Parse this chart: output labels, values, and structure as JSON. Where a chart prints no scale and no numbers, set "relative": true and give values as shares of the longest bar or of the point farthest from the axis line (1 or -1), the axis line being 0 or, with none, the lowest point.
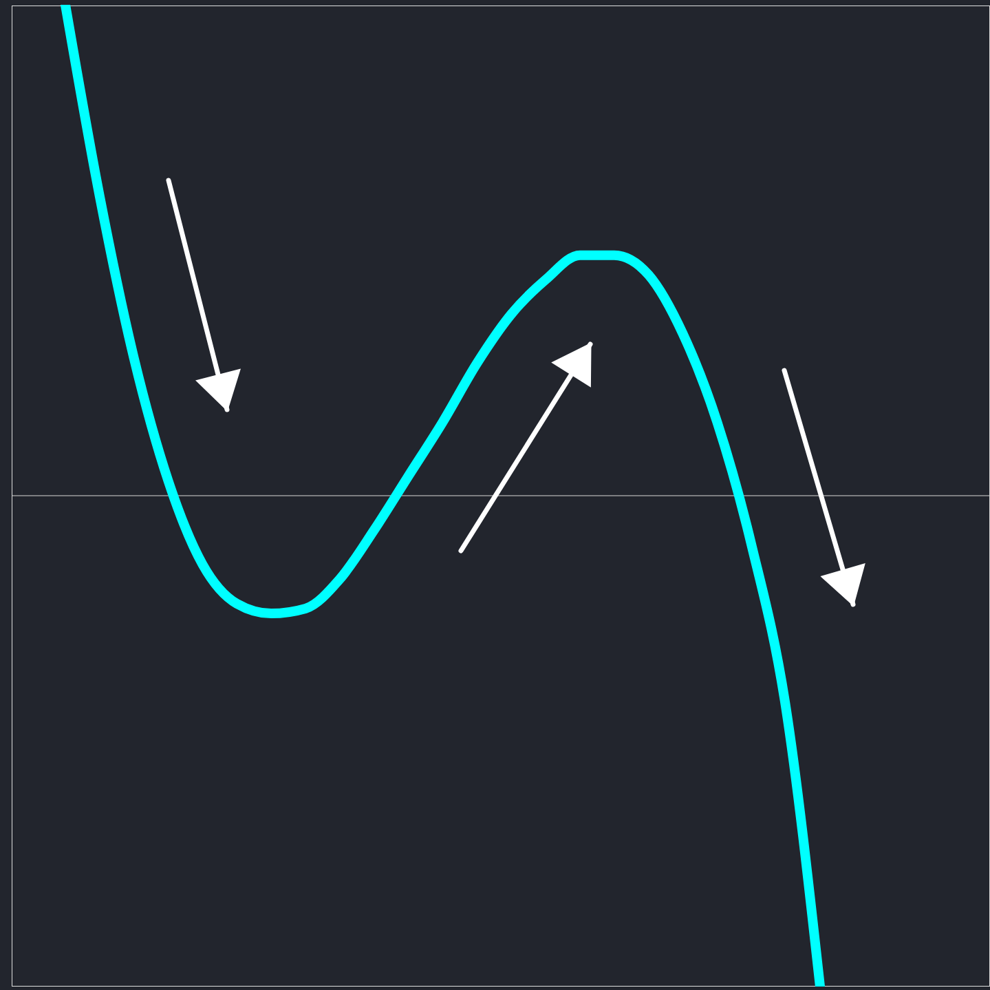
{
  "chart_data": {
    "type": "line",
    "relative": true,
    "marker": "none",
    "line_style": "solid",
    "categories": [
      null,
      null,
      null,
      null,
      null,
      null,
      null,
      null,
      null,
      null,
      null,
      null,
      null,
      null,
      null,
      null,
      null,
      null,
      null,
      null,
      null,
      null,
      null
    ],
    "series": [
      {
        "color": "#00ffff",
        "values": [
          1.0,
          0.61,
          0.28,
          0.03,
          -0.14,
          -0.22,
          -0.24,
          -0.23,
          -0.17,
          -0.07,
          0.04,
          0.15,
          0.27,
          0.37,
          0.44,
          0.49,
          0.49,
          0.45,
          0.33,
          0.15,
          -0.1,
          -0.43,
          -1
        ]
      }
    ]
  }
}
